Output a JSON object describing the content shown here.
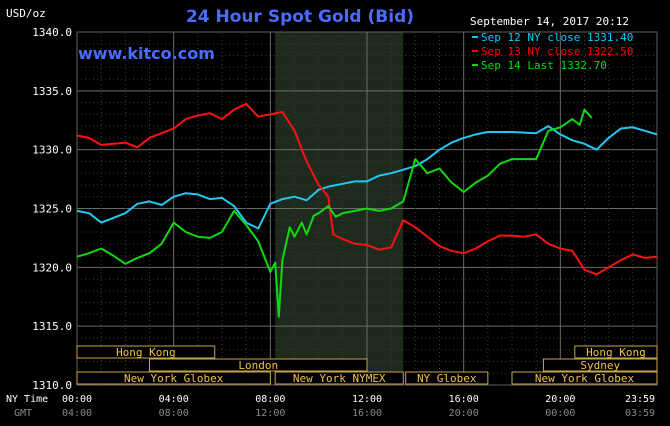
{
  "chart_data": {
    "type": "line",
    "title": "24 Hour Spot Gold (Bid)",
    "ylabel": "USD/oz",
    "watermark": "www.kitco.com",
    "timestamp": "September 14, 2017 20:12",
    "ylim": [
      1310,
      1340
    ],
    "y_ticks": [
      "1340.0",
      "1335.0",
      "1330.0",
      "1325.0",
      "1320.0",
      "1315.0",
      "1310.0"
    ],
    "x_label_ny": "NY Time",
    "x_label_gmt": "GMT",
    "x_ticks_ny": [
      "00:00",
      "04:00",
      "08:00",
      "12:00",
      "16:00",
      "20:00",
      "23:59"
    ],
    "x_ticks_gmt": [
      "04:00",
      "08:00",
      "12:00",
      "16:00",
      "20:00",
      "00:00",
      "03:59"
    ],
    "legend": [
      {
        "label": "Sep 12 NY close 1331.40",
        "color": "#00ccff"
      },
      {
        "label": "Sep 13 NY close 1322.50",
        "color": "#ff0000"
      },
      {
        "label": "Sep 14 Last 1332.70",
        "color": "#00dd00"
      }
    ],
    "series": [
      {
        "name": "Sep 12 NY close 1331.40",
        "color": "#22c8f0",
        "points": [
          [
            0,
            1324.8
          ],
          [
            0.5,
            1324.6
          ],
          [
            1,
            1323.8
          ],
          [
            1.5,
            1324.2
          ],
          [
            2,
            1324.6
          ],
          [
            2.5,
            1325.4
          ],
          [
            3,
            1325.6
          ],
          [
            3.5,
            1325.3
          ],
          [
            4,
            1326.0
          ],
          [
            4.5,
            1326.3
          ],
          [
            5,
            1326.2
          ],
          [
            5.5,
            1325.8
          ],
          [
            6,
            1325.9
          ],
          [
            6.5,
            1325.2
          ],
          [
            7,
            1323.8
          ],
          [
            7.5,
            1323.3
          ],
          [
            8,
            1325.4
          ],
          [
            8.5,
            1325.8
          ],
          [
            9,
            1326.0
          ],
          [
            9.5,
            1325.7
          ],
          [
            10,
            1326.6
          ],
          [
            10.5,
            1326.9
          ],
          [
            11,
            1327.1
          ],
          [
            11.5,
            1327.3
          ],
          [
            12,
            1327.3
          ],
          [
            12.5,
            1327.8
          ],
          [
            13,
            1328.0
          ],
          [
            13.5,
            1328.3
          ],
          [
            14,
            1328.6
          ],
          [
            14.5,
            1329.2
          ],
          [
            15,
            1330.0
          ],
          [
            15.5,
            1330.6
          ],
          [
            16,
            1331.0
          ],
          [
            16.5,
            1331.3
          ],
          [
            17,
            1331.5
          ],
          [
            18,
            1331.5
          ],
          [
            19,
            1331.4
          ],
          [
            19.5,
            1332.0
          ],
          [
            20,
            1331.3
          ],
          [
            20.5,
            1330.8
          ],
          [
            21,
            1330.5
          ],
          [
            21.5,
            1330.0
          ],
          [
            22,
            1331.0
          ],
          [
            22.5,
            1331.8
          ],
          [
            23,
            1331.9
          ],
          [
            23.5,
            1331.6
          ],
          [
            24,
            1331.3
          ]
        ]
      },
      {
        "name": "Sep 13 NY close 1322.50",
        "color": "#ff1010",
        "points": [
          [
            0,
            1331.2
          ],
          [
            0.5,
            1331.0
          ],
          [
            1,
            1330.4
          ],
          [
            1.5,
            1330.5
          ],
          [
            2,
            1330.6
          ],
          [
            2.5,
            1330.2
          ],
          [
            3,
            1331.0
          ],
          [
            3.5,
            1331.4
          ],
          [
            4,
            1331.8
          ],
          [
            4.5,
            1332.6
          ],
          [
            5,
            1332.9
          ],
          [
            5.5,
            1333.1
          ],
          [
            6,
            1332.6
          ],
          [
            6.5,
            1333.4
          ],
          [
            7,
            1333.9
          ],
          [
            7.5,
            1332.8
          ],
          [
            8,
            1333.0
          ],
          [
            8.5,
            1333.2
          ],
          [
            9,
            1331.6
          ],
          [
            9.5,
            1329.0
          ],
          [
            10,
            1327.0
          ],
          [
            10.4,
            1326.0
          ],
          [
            10.6,
            1322.8
          ],
          [
            11,
            1322.4
          ],
          [
            11.5,
            1322.0
          ],
          [
            12,
            1321.9
          ],
          [
            12.5,
            1321.5
          ],
          [
            13,
            1321.7
          ],
          [
            13.5,
            1324.0
          ],
          [
            14,
            1323.4
          ],
          [
            14.5,
            1322.6
          ],
          [
            15,
            1321.8
          ],
          [
            15.5,
            1321.4
          ],
          [
            16,
            1321.2
          ],
          [
            16.5,
            1321.6
          ],
          [
            17,
            1322.2
          ],
          [
            17.5,
            1322.7
          ],
          [
            18,
            1322.7
          ],
          [
            18.5,
            1322.6
          ],
          [
            19,
            1322.8
          ],
          [
            19.5,
            1322.0
          ],
          [
            20,
            1321.6
          ],
          [
            20.5,
            1321.4
          ],
          [
            21,
            1319.8
          ],
          [
            21.5,
            1319.4
          ],
          [
            22,
            1320.0
          ],
          [
            22.5,
            1320.6
          ],
          [
            23,
            1321.1
          ],
          [
            23.5,
            1320.8
          ],
          [
            24,
            1320.9
          ]
        ]
      },
      {
        "name": "Sep 14 Last 1332.70",
        "color": "#11d811",
        "points": [
          [
            0,
            1320.9
          ],
          [
            0.5,
            1321.2
          ],
          [
            1,
            1321.6
          ],
          [
            1.5,
            1321.0
          ],
          [
            2,
            1320.3
          ],
          [
            2.5,
            1320.8
          ],
          [
            3,
            1321.2
          ],
          [
            3.5,
            1322.0
          ],
          [
            4,
            1323.8
          ],
          [
            4.5,
            1323.0
          ],
          [
            5,
            1322.6
          ],
          [
            5.5,
            1322.5
          ],
          [
            6,
            1323.0
          ],
          [
            6.5,
            1324.8
          ],
          [
            7,
            1323.6
          ],
          [
            7.5,
            1322.2
          ],
          [
            8,
            1319.6
          ],
          [
            8.2,
            1320.4
          ],
          [
            8.35,
            1315.8
          ],
          [
            8.5,
            1320.6
          ],
          [
            8.8,
            1323.4
          ],
          [
            9,
            1322.6
          ],
          [
            9.3,
            1323.8
          ],
          [
            9.5,
            1322.8
          ],
          [
            9.8,
            1324.4
          ],
          [
            10,
            1324.6
          ],
          [
            10.4,
            1325.2
          ],
          [
            10.7,
            1324.3
          ],
          [
            11,
            1324.6
          ],
          [
            11.5,
            1324.8
          ],
          [
            12,
            1325.0
          ],
          [
            12.5,
            1324.8
          ],
          [
            13,
            1325.0
          ],
          [
            13.5,
            1325.6
          ],
          [
            14,
            1329.2
          ],
          [
            14.5,
            1328.0
          ],
          [
            15,
            1328.4
          ],
          [
            15.5,
            1327.2
          ],
          [
            16,
            1326.4
          ],
          [
            16.5,
            1327.2
          ],
          [
            17,
            1327.8
          ],
          [
            17.5,
            1328.8
          ],
          [
            18,
            1329.2
          ],
          [
            19,
            1329.2
          ],
          [
            19.5,
            1331.6
          ],
          [
            20,
            1331.9
          ],
          [
            20.5,
            1332.6
          ],
          [
            20.8,
            1332.1
          ],
          [
            21,
            1333.4
          ],
          [
            21.3,
            1332.7
          ]
        ]
      }
    ],
    "sessions": [
      {
        "label": "Hong Kong",
        "row": 0,
        "start": 0,
        "end": 5.7
      },
      {
        "label": "London",
        "row": 1,
        "start": 3,
        "end": 12
      },
      {
        "label": "New York Globex",
        "row": 2,
        "start": 0,
        "end": 8
      },
      {
        "label": "New York NYMEX",
        "row": 2,
        "start": 8.2,
        "end": 13.5
      },
      {
        "label": "NY Globex",
        "row": 2,
        "start": 13.6,
        "end": 17
      },
      {
        "label": "Sydney",
        "row": 1,
        "start": 19.3,
        "end": 24
      },
      {
        "label": "Hong Kong",
        "row": 0,
        "start": 20.6,
        "end": 24
      },
      {
        "label": "New York Globex",
        "row": 2,
        "start": 18,
        "end": 24
      }
    ]
  }
}
